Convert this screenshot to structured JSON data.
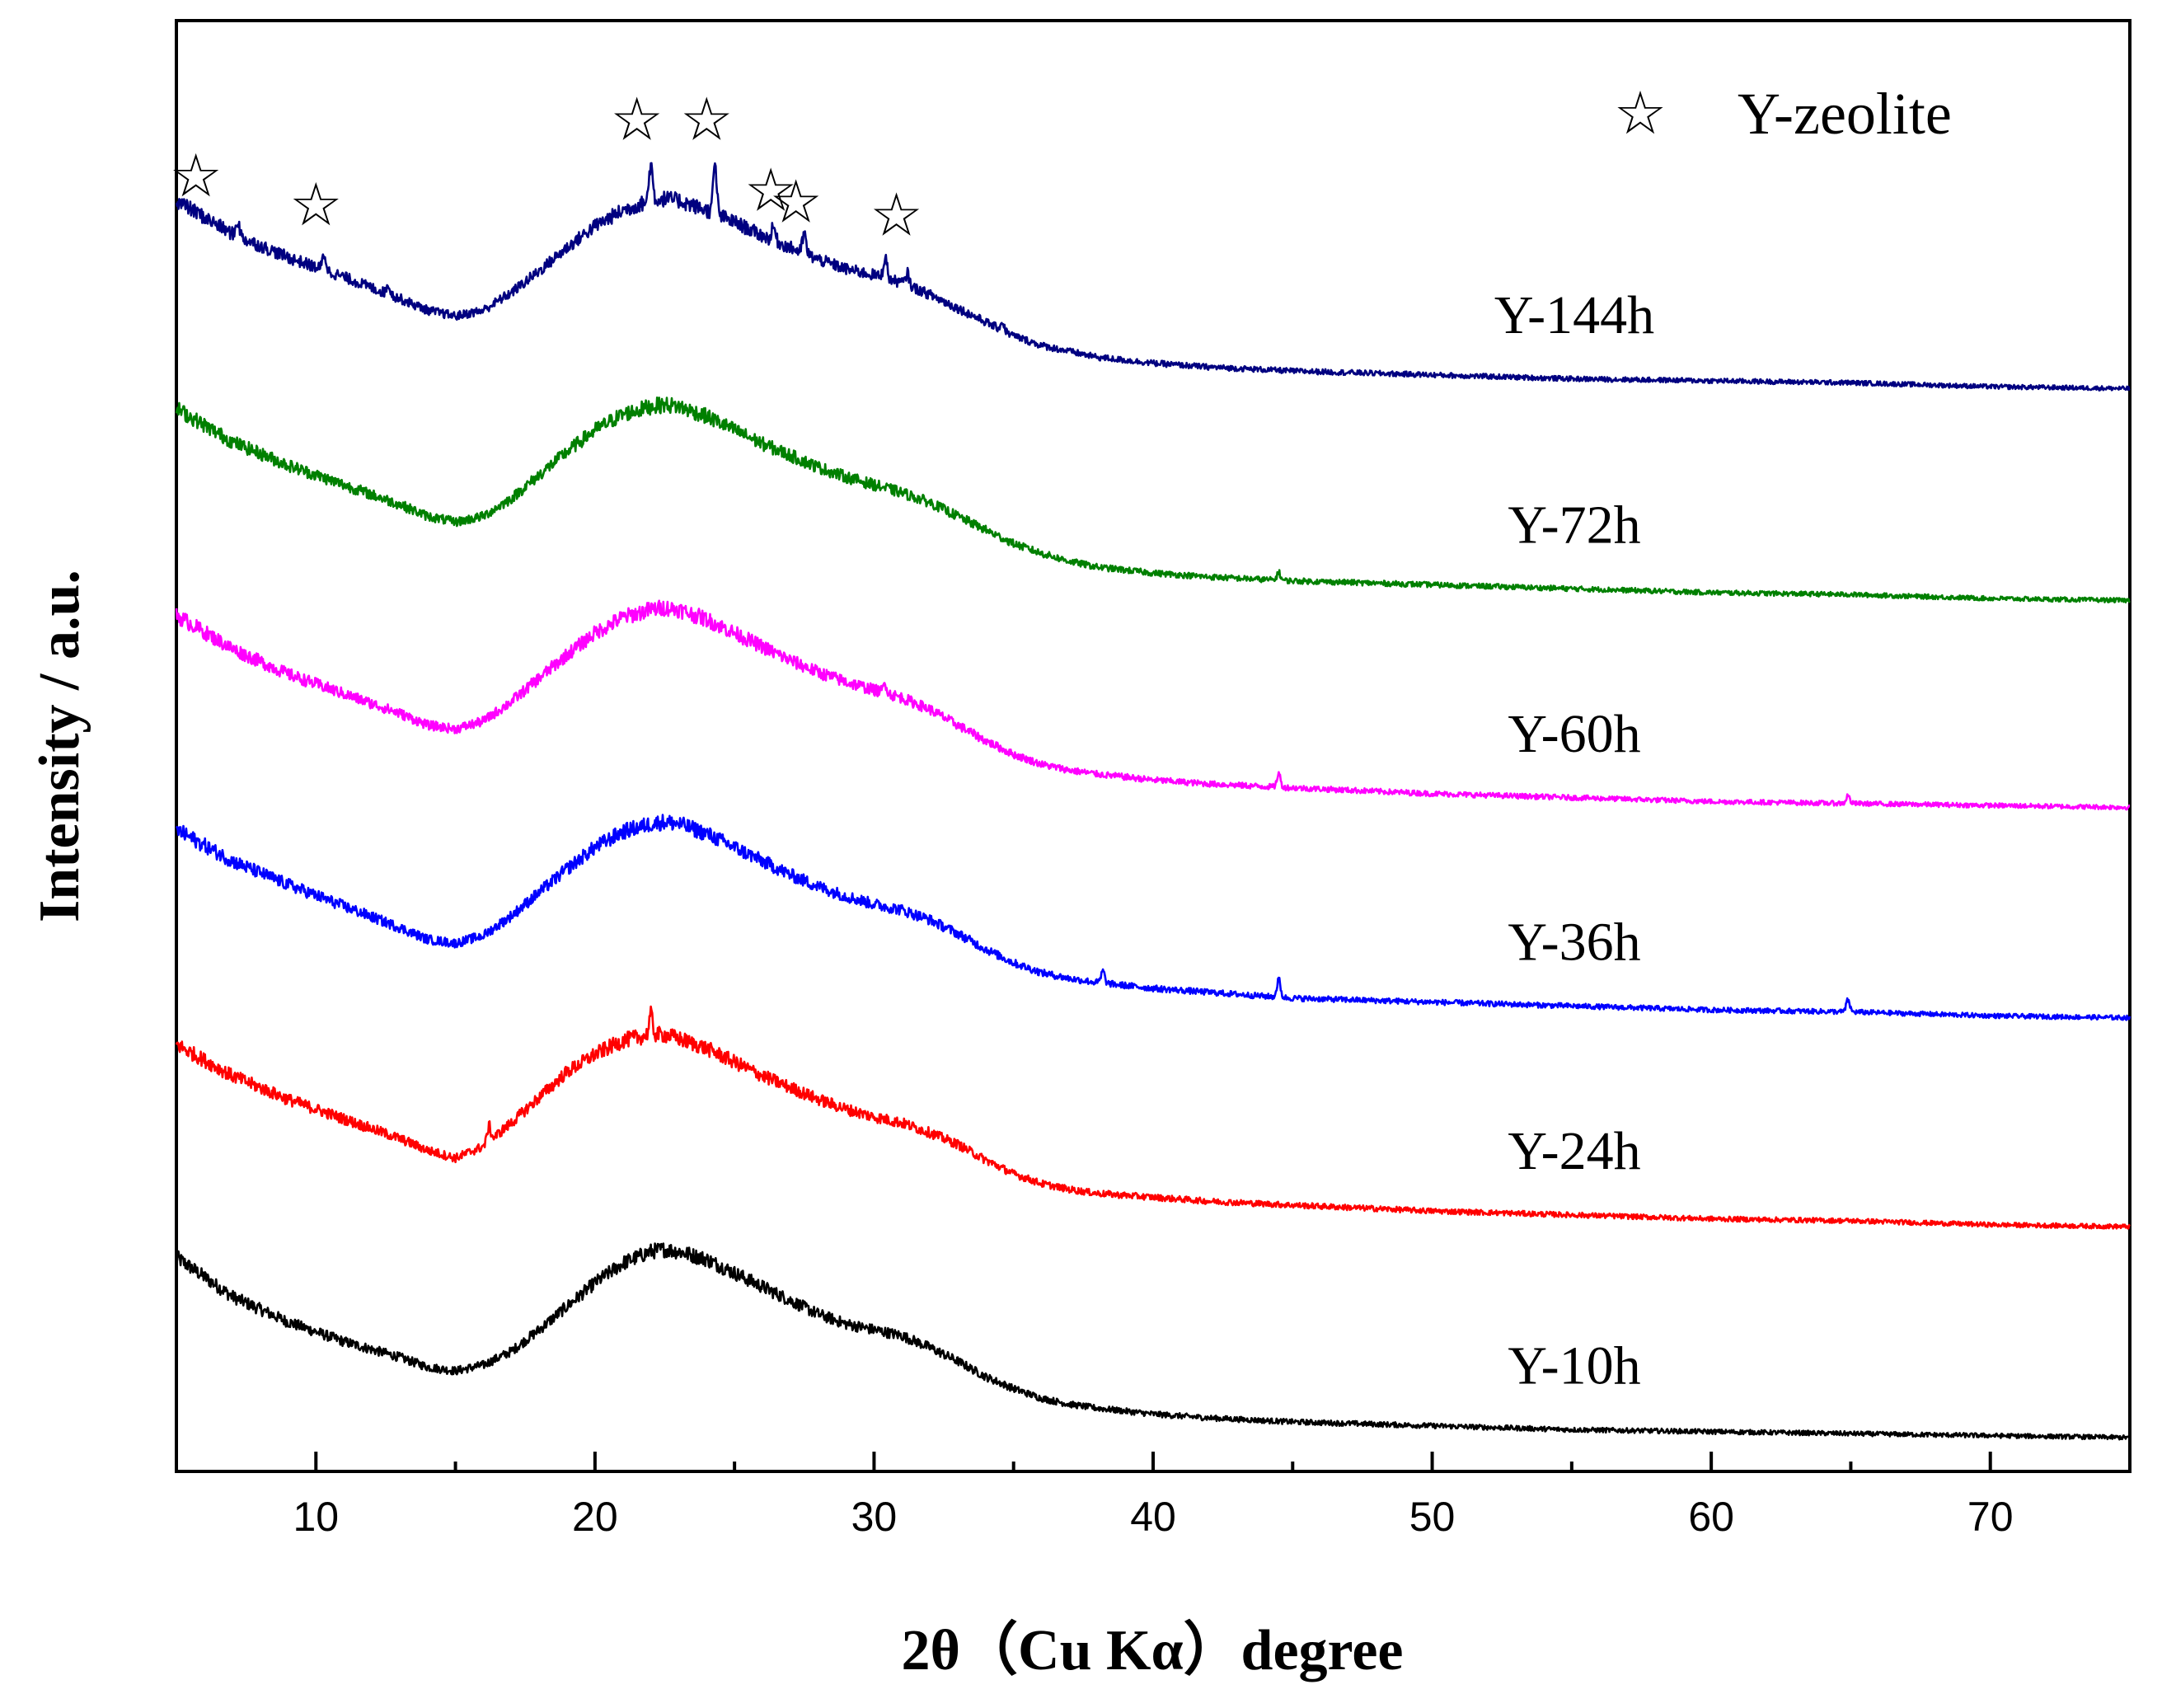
{
  "chart_data": {
    "type": "line",
    "title": "",
    "xlabel": "2θ（Cu Kα）degree",
    "ylabel": "Intensity / a.u.",
    "xlim": [
      5,
      75
    ],
    "ylim": [
      0,
      1
    ],
    "grid": false,
    "legend": {
      "position": "top-right",
      "entries": [
        {
          "marker": "☆",
          "label": "Y-zeolite"
        }
      ]
    },
    "x_ticks": [
      10,
      20,
      30,
      40,
      50,
      60,
      70
    ],
    "x_tick_labels": [
      "10",
      "20",
      "30",
      "40",
      "50",
      "60",
      "70"
    ],
    "y_ticks_shown": false,
    "series": [
      {
        "name": "Y-10h",
        "color": "#000000",
        "baseline": 0.022,
        "scale": 0.135,
        "x": [
          5,
          7,
          9,
          11,
          13,
          14,
          15,
          16,
          17,
          18,
          19,
          20,
          21,
          22,
          22.5,
          23,
          24,
          25,
          26,
          27,
          28,
          29,
          30,
          31,
          32,
          33,
          34,
          35,
          36,
          37,
          38,
          40,
          42,
          45,
          50,
          55,
          60,
          65,
          70,
          75
        ],
        "values": [
          0.93,
          0.73,
          0.6,
          0.5,
          0.42,
          0.37,
          0.35,
          0.38,
          0.45,
          0.56,
          0.68,
          0.8,
          0.9,
          0.96,
          0.97,
          0.96,
          0.92,
          0.85,
          0.78,
          0.71,
          0.64,
          0.59,
          0.56,
          0.53,
          0.47,
          0.4,
          0.32,
          0.26,
          0.21,
          0.18,
          0.16,
          0.13,
          0.11,
          0.09,
          0.07,
          0.05,
          0.04,
          0.03,
          0.02,
          0.01
        ],
        "peaks": []
      },
      {
        "name": "Y-24h",
        "color": "#ff0000",
        "baseline": 0.166,
        "scale": 0.135,
        "x": [
          5,
          7,
          9,
          11,
          13,
          14,
          15,
          16,
          17,
          18,
          19,
          20,
          21,
          22,
          22.5,
          23,
          24,
          25,
          26,
          27,
          28,
          29,
          30,
          31,
          32,
          33,
          34,
          35,
          36,
          37,
          38,
          40,
          42,
          45,
          50,
          55,
          60,
          65,
          70,
          75
        ],
        "values": [
          0.95,
          0.79,
          0.67,
          0.57,
          0.47,
          0.41,
          0.37,
          0.43,
          0.55,
          0.68,
          0.81,
          0.9,
          0.97,
          1.0,
          1.0,
          0.98,
          0.93,
          0.86,
          0.79,
          0.73,
          0.67,
          0.62,
          0.58,
          0.55,
          0.5,
          0.44,
          0.36,
          0.29,
          0.24,
          0.21,
          0.19,
          0.17,
          0.15,
          0.13,
          0.1,
          0.08,
          0.06,
          0.05,
          0.03,
          0.02
        ],
        "peaks": [
          {
            "x": 16.2,
            "h": 0.08
          },
          {
            "x": 22.0,
            "h": 0.1
          }
        ]
      },
      {
        "name": "Y-36h",
        "color": "#0000ff",
        "baseline": 0.31,
        "scale": 0.135,
        "x": [
          5,
          7,
          9,
          11,
          13,
          14,
          15,
          16,
          17,
          18,
          19,
          20,
          21,
          22,
          22.5,
          23,
          24,
          25,
          26,
          27,
          28,
          29,
          30,
          31,
          32,
          33,
          34,
          35,
          36,
          37,
          38,
          40,
          42,
          45,
          50,
          55,
          60,
          65,
          70,
          75
        ],
        "values": [
          0.98,
          0.82,
          0.7,
          0.59,
          0.48,
          0.42,
          0.4,
          0.44,
          0.54,
          0.66,
          0.78,
          0.89,
          0.97,
          1.01,
          1.02,
          1.01,
          0.96,
          0.89,
          0.82,
          0.75,
          0.69,
          0.64,
          0.6,
          0.57,
          0.52,
          0.45,
          0.37,
          0.3,
          0.25,
          0.22,
          0.2,
          0.17,
          0.15,
          0.12,
          0.1,
          0.08,
          0.06,
          0.05,
          0.03,
          0.02
        ],
        "peaks": [
          {
            "x": 38.2,
            "h": 0.06
          },
          {
            "x": 44.5,
            "h": 0.09
          },
          {
            "x": 64.9,
            "h": 0.06
          }
        ]
      },
      {
        "name": "Y-60h",
        "color": "#ff00ff",
        "baseline": 0.455,
        "scale": 0.135,
        "x": [
          5,
          7,
          9,
          11,
          13,
          14,
          15,
          16,
          17,
          18,
          19,
          20,
          21,
          22,
          22.5,
          23,
          24,
          25,
          26,
          27,
          28,
          29,
          30,
          31,
          32,
          33,
          34,
          35,
          36,
          37,
          38,
          40,
          42,
          45,
          50,
          55,
          60,
          65,
          70,
          75
        ],
        "values": [
          1.0,
          0.83,
          0.7,
          0.6,
          0.5,
          0.44,
          0.42,
          0.46,
          0.56,
          0.68,
          0.8,
          0.91,
          0.99,
          1.03,
          1.04,
          1.03,
          0.98,
          0.91,
          0.84,
          0.77,
          0.71,
          0.66,
          0.62,
          0.58,
          0.52,
          0.44,
          0.36,
          0.29,
          0.24,
          0.21,
          0.19,
          0.16,
          0.14,
          0.12,
          0.09,
          0.07,
          0.05,
          0.04,
          0.03,
          0.02
        ],
        "peaks": [
          {
            "x": 30.4,
            "h": 0.05
          },
          {
            "x": 44.5,
            "h": 0.07
          },
          {
            "x": 64.9,
            "h": 0.04
          }
        ]
      },
      {
        "name": "Y-72h",
        "color": "#008000",
        "baseline": 0.599,
        "scale": 0.135,
        "x": [
          5,
          7,
          9,
          11,
          13,
          14,
          15,
          16,
          17,
          18,
          19,
          20,
          21,
          22,
          22.5,
          23,
          24,
          25,
          26,
          27,
          28,
          29,
          30,
          31,
          32,
          33,
          34,
          35,
          36,
          37,
          38,
          40,
          42,
          45,
          50,
          55,
          60,
          65,
          70,
          75
        ],
        "values": [
          0.99,
          0.82,
          0.7,
          0.6,
          0.5,
          0.44,
          0.41,
          0.44,
          0.53,
          0.65,
          0.77,
          0.88,
          0.96,
          1.0,
          1.01,
          1.0,
          0.95,
          0.88,
          0.81,
          0.75,
          0.69,
          0.64,
          0.6,
          0.56,
          0.51,
          0.44,
          0.37,
          0.3,
          0.25,
          0.21,
          0.18,
          0.15,
          0.13,
          0.11,
          0.09,
          0.07,
          0.05,
          0.04,
          0.02,
          0.01
        ],
        "peaks": [
          {
            "x": 44.5,
            "h": 0.04
          }
        ]
      },
      {
        "name": "Y-144h",
        "color": "#000080",
        "baseline": 0.745,
        "scale": 0.135,
        "x": [
          5,
          7,
          9,
          11,
          13,
          14,
          15,
          16,
          17,
          18,
          19,
          20,
          21,
          22,
          22.5,
          23,
          24,
          25,
          26,
          27,
          28,
          29,
          30,
          31,
          32,
          33,
          34,
          35,
          36,
          37,
          38,
          40,
          42,
          45,
          50,
          55,
          60,
          65,
          70,
          75
        ],
        "values": [
          0.97,
          0.8,
          0.68,
          0.58,
          0.47,
          0.41,
          0.38,
          0.41,
          0.5,
          0.61,
          0.73,
          0.84,
          0.92,
          0.97,
          0.98,
          0.97,
          0.92,
          0.86,
          0.79,
          0.73,
          0.67,
          0.62,
          0.59,
          0.55,
          0.49,
          0.42,
          0.35,
          0.28,
          0.23,
          0.2,
          0.17,
          0.14,
          0.12,
          0.1,
          0.08,
          0.06,
          0.05,
          0.04,
          0.02,
          0.01
        ],
        "peaks": [
          {
            "x": 7.2,
            "h": 0.08
          },
          {
            "x": 10.3,
            "h": 0.08
          },
          {
            "x": 12.6,
            "h": 0.05
          },
          {
            "x": 22.0,
            "h": 0.19
          },
          {
            "x": 24.3,
            "h": 0.25
          },
          {
            "x": 26.4,
            "h": 0.07
          },
          {
            "x": 27.5,
            "h": 0.1
          },
          {
            "x": 30.4,
            "h": 0.11
          },
          {
            "x": 31.2,
            "h": 0.06
          },
          {
            "x": 34.6,
            "h": 0.04
          }
        ]
      }
    ],
    "annotations": [
      {
        "text": "☆",
        "x": 5.7,
        "y": 0.879
      },
      {
        "text": "☆",
        "x": 10.0,
        "y": 0.859
      },
      {
        "text": "☆",
        "x": 21.5,
        "y": 0.918
      },
      {
        "text": "☆",
        "x": 24.0,
        "y": 0.918
      },
      {
        "text": "☆",
        "x": 26.3,
        "y": 0.869
      },
      {
        "text": "☆",
        "x": 27.2,
        "y": 0.861
      },
      {
        "text": "☆",
        "x": 30.8,
        "y": 0.852
      }
    ]
  }
}
